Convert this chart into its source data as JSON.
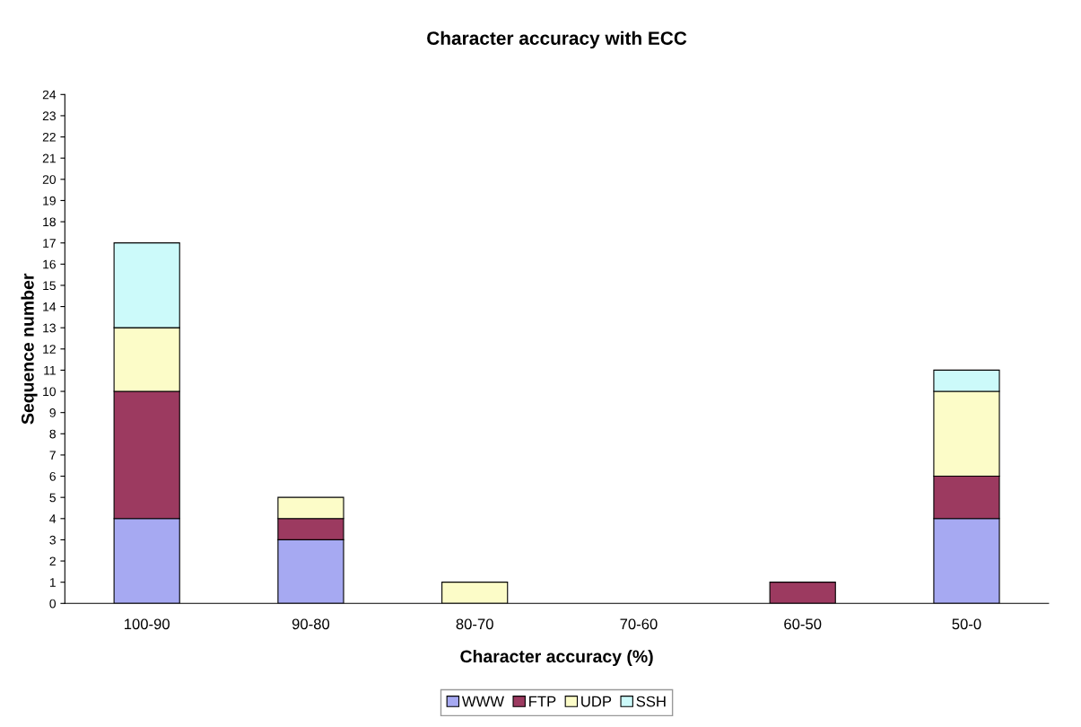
{
  "chart_data": {
    "type": "bar",
    "title": "Character accuracy with ECC",
    "xlabel": "Character accuracy (%)",
    "ylabel": "Sequence number",
    "categories": [
      "100-90",
      "90-80",
      "80-70",
      "70-60",
      "60-50",
      "50-0"
    ],
    "stacked": true,
    "series": [
      {
        "name": "WWW",
        "color": "#a6a9f2",
        "values": [
          4,
          3,
          0,
          0,
          0,
          4
        ]
      },
      {
        "name": "FTP",
        "color": "#9c3a60",
        "values": [
          6,
          1,
          0,
          0,
          1,
          2
        ]
      },
      {
        "name": "UDP",
        "color": "#fcfcc8",
        "values": [
          3,
          1,
          1,
          0,
          0,
          4
        ]
      },
      {
        "name": "SSH",
        "color": "#ccfafa",
        "values": [
          4,
          0,
          0,
          0,
          0,
          1
        ]
      }
    ],
    "ylim": [
      0,
      24
    ],
    "yticks": [
      0,
      1,
      2,
      3,
      4,
      5,
      6,
      7,
      8,
      9,
      10,
      11,
      12,
      13,
      14,
      15,
      16,
      17,
      18,
      19,
      20,
      21,
      22,
      23,
      24
    ],
    "grid": false,
    "legend": "bottom"
  }
}
